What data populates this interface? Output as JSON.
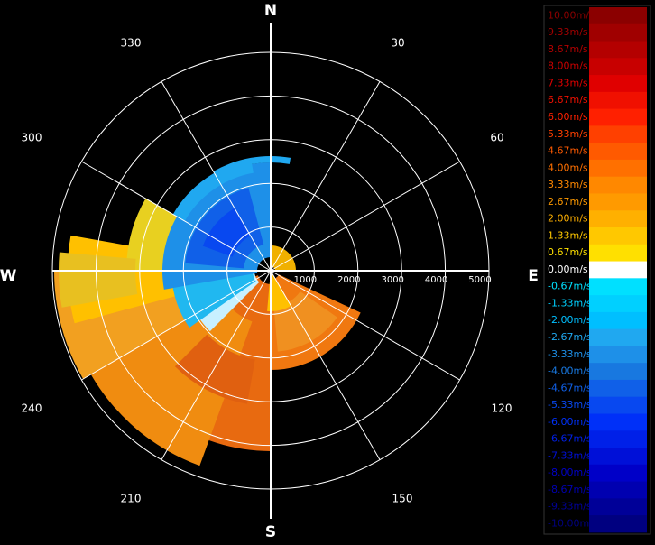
{
  "compass": [
    "N",
    "E",
    "S",
    "W"
  ],
  "azimuth_labels": [
    "30",
    "60",
    "120",
    "150",
    "210",
    "240",
    "300",
    "330"
  ],
  "range_labels": [
    "1000",
    "2000",
    "3000",
    "4000",
    "5000"
  ],
  "legend": [
    {
      "label": "10.00m/s",
      "color": "#8b0000"
    },
    {
      "label": "9.33m/s",
      "color": "#a00000"
    },
    {
      "label": "8.67m/s",
      "color": "#b40000"
    },
    {
      "label": "8.00m/s",
      "color": "#c80000"
    },
    {
      "label": "7.33m/s",
      "color": "#e00000"
    },
    {
      "label": "6.67m/s",
      "color": "#f01000"
    },
    {
      "label": "6.00m/s",
      "color": "#ff2000"
    },
    {
      "label": "5.33m/s",
      "color": "#ff4000"
    },
    {
      "label": "4.67m/s",
      "color": "#ff5a00"
    },
    {
      "label": "4.00m/s",
      "color": "#ff7000"
    },
    {
      "label": "3.33m/s",
      "color": "#ff8800"
    },
    {
      "label": "2.67m/s",
      "color": "#ff9a00"
    },
    {
      "label": "2.00m/s",
      "color": "#ffb000"
    },
    {
      "label": "1.33m/s",
      "color": "#ffc800"
    },
    {
      "label": "0.67m/s",
      "color": "#ffe000"
    },
    {
      "label": "0.00m/s",
      "color": "#ffffff"
    },
    {
      "label": "-0.67m/s",
      "color": "#00e0ff"
    },
    {
      "label": "-1.33m/s",
      "color": "#00d0ff"
    },
    {
      "label": "-2.00m/s",
      "color": "#00bfff"
    },
    {
      "label": "-2.67m/s",
      "color": "#20a8f0"
    },
    {
      "label": "-3.33m/s",
      "color": "#1e90e8"
    },
    {
      "label": "-4.00m/s",
      "color": "#1878e0"
    },
    {
      "label": "-4.67m/s",
      "color": "#1060e8"
    },
    {
      "label": "-5.33m/s",
      "color": "#0848f0"
    },
    {
      "label": "-6.00m/s",
      "color": "#0030f8"
    },
    {
      "label": "-6.67m/s",
      "color": "#0020e8"
    },
    {
      "label": "-7.33m/s",
      "color": "#0010d8"
    },
    {
      "label": "-8.00m/s",
      "color": "#0000c8"
    },
    {
      "label": "-8.67m/s",
      "color": "#0000b0"
    },
    {
      "label": "-9.33m/s",
      "color": "#000098"
    },
    {
      "label": "-10.00m/s",
      "color": "#000080"
    }
  ]
}
